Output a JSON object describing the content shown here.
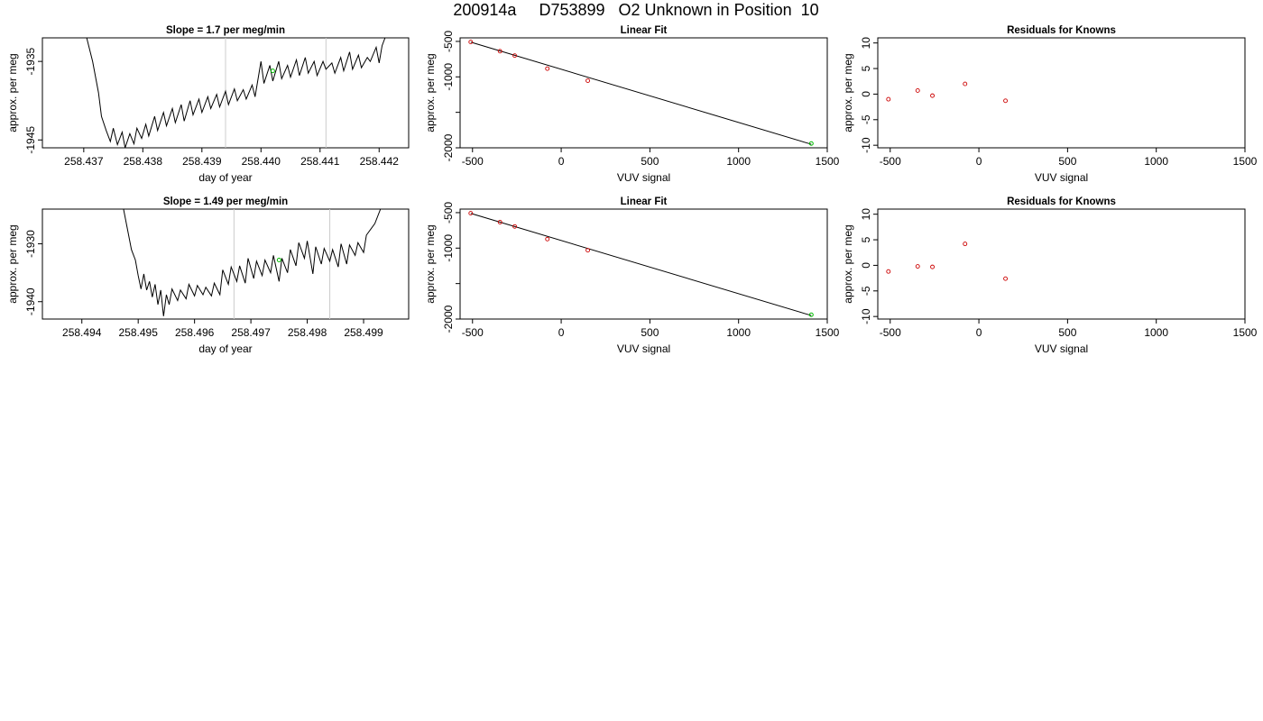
{
  "page": {
    "title": "200914a     D753899   O2 Unknown in Position  10"
  },
  "colors": {
    "trace": "#000000",
    "marker_unknown": "#00bb00",
    "marker_known": "#cc0000",
    "vline": "#cccccc",
    "fit_line": "#000000"
  },
  "chart_data": [
    {
      "type": "line",
      "title": "Slope =  1.7  per meg/min",
      "xlabel": "day of year",
      "ylabel": "approx. per meg",
      "xlim": [
        258.4363,
        258.4425
      ],
      "ylim": [
        -1946.0,
        -1932.0
      ],
      "xticks": [
        258.437,
        258.438,
        258.439,
        258.44,
        258.441,
        258.442
      ],
      "xtick_labels": [
        "258.437",
        "258.438",
        "258.439",
        "258.440",
        "258.441",
        "258.442"
      ],
      "yticks": [
        -1945,
        -1935
      ],
      "ytick_labels": [
        "-1945",
        "-1935"
      ],
      "vlines": [
        258.4394,
        258.4411
      ],
      "unknown_point": {
        "x": 258.4402,
        "y": -1936.2
      },
      "grid": false,
      "series": [
        {
          "style": "line",
          "points": [
            [
              258.43705,
              -1932.0
            ],
            [
              258.43715,
              -1935.0
            ],
            [
              258.43725,
              -1939.0
            ],
            [
              258.4373,
              -1942.0
            ],
            [
              258.43738,
              -1943.8
            ],
            [
              258.43745,
              -1945.2
            ],
            [
              258.4375,
              -1943.5
            ],
            [
              258.43757,
              -1945.6
            ],
            [
              258.43765,
              -1944.0
            ],
            [
              258.4377,
              -1946.0
            ],
            [
              258.43778,
              -1944.2
            ],
            [
              258.43785,
              -1945.5
            ],
            [
              258.4379,
              -1943.5
            ],
            [
              258.43798,
              -1944.8
            ],
            [
              258.43805,
              -1943.0
            ],
            [
              258.4381,
              -1944.5
            ],
            [
              258.4382,
              -1942.0
            ],
            [
              258.43825,
              -1943.8
            ],
            [
              258.43835,
              -1941.5
            ],
            [
              258.4384,
              -1943.2
            ],
            [
              258.4385,
              -1941.0
            ],
            [
              258.43855,
              -1942.8
            ],
            [
              258.43865,
              -1940.5
            ],
            [
              258.4387,
              -1942.6
            ],
            [
              258.4388,
              -1940.0
            ],
            [
              258.43885,
              -1941.8
            ],
            [
              258.43895,
              -1939.8
            ],
            [
              258.439,
              -1941.5
            ],
            [
              258.4391,
              -1939.5
            ],
            [
              258.43915,
              -1941.0
            ],
            [
              258.43925,
              -1939.2
            ],
            [
              258.4393,
              -1940.8
            ],
            [
              258.4394,
              -1938.8
            ],
            [
              258.43945,
              -1940.5
            ],
            [
              258.43955,
              -1938.5
            ],
            [
              258.4396,
              -1940.0
            ],
            [
              258.4397,
              -1938.6
            ],
            [
              258.43975,
              -1939.8
            ],
            [
              258.43985,
              -1938.0
            ],
            [
              258.4399,
              -1939.5
            ],
            [
              258.44,
              -1935.0
            ],
            [
              258.44005,
              -1937.8
            ],
            [
              258.44015,
              -1935.5
            ],
            [
              258.4402,
              -1937.5
            ],
            [
              258.4403,
              -1935.0
            ],
            [
              258.44035,
              -1937.2
            ],
            [
              258.44045,
              -1935.5
            ],
            [
              258.4405,
              -1937.0
            ],
            [
              258.4406,
              -1934.8
            ],
            [
              258.44065,
              -1936.8
            ],
            [
              258.44075,
              -1934.5
            ],
            [
              258.4408,
              -1936.5
            ],
            [
              258.4409,
              -1935.0
            ],
            [
              258.44095,
              -1936.8
            ],
            [
              258.44105,
              -1935.0
            ],
            [
              258.4411,
              -1936.0
            ],
            [
              258.4412,
              -1935.2
            ],
            [
              258.44125,
              -1936.5
            ],
            [
              258.44135,
              -1934.5
            ],
            [
              258.4414,
              -1936.2
            ],
            [
              258.4415,
              -1933.8
            ],
            [
              258.44155,
              -1936.0
            ],
            [
              258.44165,
              -1934.2
            ],
            [
              258.4417,
              -1935.8
            ],
            [
              258.4418,
              -1934.5
            ],
            [
              258.44185,
              -1935.0
            ],
            [
              258.44195,
              -1933.2
            ],
            [
              258.442,
              -1935.2
            ],
            [
              258.44205,
              -1933.0
            ],
            [
              258.4421,
              -1932.0
            ]
          ]
        }
      ]
    },
    {
      "type": "scatter",
      "title": "Linear Fit",
      "xlabel": "VUV signal",
      "ylabel": "approx. per meg",
      "xlim": [
        -570,
        1500
      ],
      "ylim": [
        -2000,
        -450
      ],
      "xticks": [
        -500,
        0,
        500,
        1000,
        1500
      ],
      "xtick_labels": [
        "-500",
        "0",
        "500",
        "1000",
        "1500"
      ],
      "yticks": [
        -2000,
        -1500,
        -1000,
        -500
      ],
      "ytick_labels": [
        "-2000",
        "",
        "-1000",
        "-500"
      ],
      "fit_line": {
        "x": [
          -510,
          1410
        ],
        "y": [
          -510,
          -1950
        ]
      },
      "known_points": {
        "x": [
          -510,
          -345,
          -262,
          -78,
          150
        ],
        "y": [
          -508,
          -638,
          -700,
          -884,
          -1054
        ]
      },
      "unknown_point": {
        "x": 1410,
        "y": -1940
      }
    },
    {
      "type": "scatter",
      "title": "Residuals for Knowns",
      "xlabel": "VUV signal",
      "ylabel": "approx. per meg",
      "xlim": [
        -570,
        1500
      ],
      "ylim": [
        -10.5,
        11
      ],
      "xticks": [
        -500,
        0,
        500,
        1000,
        1500
      ],
      "xtick_labels": [
        "-500",
        "0",
        "500",
        "1000",
        "1500"
      ],
      "yticks": [
        -10,
        -5,
        0,
        5,
        10
      ],
      "ytick_labels": [
        "-10",
        "-5",
        "0",
        "5",
        "10"
      ],
      "known_points": {
        "x": [
          -510,
          -345,
          -262,
          -78,
          150
        ],
        "y": [
          -1.0,
          0.7,
          -0.3,
          2.0,
          -1.3
        ]
      }
    },
    {
      "type": "line",
      "title": "Slope =  1.49  per meg/min",
      "xlabel": "day of year",
      "ylabel": "approx. per meg",
      "xlim": [
        258.4933,
        258.4998
      ],
      "ylim": [
        -1943.0,
        -1924.0
      ],
      "xticks": [
        258.494,
        258.495,
        258.496,
        258.497,
        258.498,
        258.499
      ],
      "xtick_labels": [
        "258.494",
        "258.495",
        "258.496",
        "258.497",
        "258.498",
        "258.499"
      ],
      "yticks": [
        -1940,
        -1930
      ],
      "ytick_labels": [
        "-1940",
        "-1930"
      ],
      "vlines": [
        258.4967,
        258.4984
      ],
      "unknown_point": {
        "x": 258.4975,
        "y": -1932.8
      },
      "grid": false,
      "series": [
        {
          "style": "line",
          "points": [
            [
              258.49474,
              -1924.0
            ],
            [
              258.4948,
              -1927.0
            ],
            [
              258.49488,
              -1931.0
            ],
            [
              258.49495,
              -1932.8
            ],
            [
              258.495,
              -1935.5
            ],
            [
              258.49505,
              -1937.8
            ],
            [
              258.4951,
              -1935.2
            ],
            [
              258.49515,
              -1938.0
            ],
            [
              258.4952,
              -1936.5
            ],
            [
              258.49525,
              -1939.2
            ],
            [
              258.4953,
              -1937.0
            ],
            [
              258.49535,
              -1940.5
            ],
            [
              258.4954,
              -1938.0
            ],
            [
              258.49545,
              -1942.5
            ],
            [
              258.4955,
              -1938.8
            ],
            [
              258.49555,
              -1940.5
            ],
            [
              258.4956,
              -1937.8
            ],
            [
              258.4957,
              -1939.8
            ],
            [
              258.49575,
              -1938.0
            ],
            [
              258.49585,
              -1939.5
            ],
            [
              258.4959,
              -1937.0
            ],
            [
              258.496,
              -1939.0
            ],
            [
              258.49605,
              -1937.2
            ],
            [
              258.49615,
              -1938.8
            ],
            [
              258.4962,
              -1937.5
            ],
            [
              258.4963,
              -1939.0
            ],
            [
              258.49635,
              -1936.8
            ],
            [
              258.49645,
              -1938.8
            ],
            [
              258.4965,
              -1934.5
            ],
            [
              258.4966,
              -1937.0
            ],
            [
              258.49665,
              -1934.0
            ],
            [
              258.49675,
              -1936.5
            ],
            [
              258.4968,
              -1933.8
            ],
            [
              258.4969,
              -1936.8
            ],
            [
              258.49695,
              -1932.5
            ],
            [
              258.49705,
              -1936.0
            ],
            [
              258.4971,
              -1933.0
            ],
            [
              258.4972,
              -1935.5
            ],
            [
              258.49725,
              -1932.8
            ],
            [
              258.49735,
              -1935.0
            ],
            [
              258.4974,
              -1932.0
            ],
            [
              258.4975,
              -1936.5
            ],
            [
              258.49755,
              -1932.5
            ],
            [
              258.49765,
              -1935.0
            ],
            [
              258.4977,
              -1931.0
            ],
            [
              258.4978,
              -1933.8
            ],
            [
              258.49785,
              -1929.8
            ],
            [
              258.49795,
              -1932.5
            ],
            [
              258.498,
              -1929.5
            ],
            [
              258.4981,
              -1935.2
            ],
            [
              258.49815,
              -1930.5
            ],
            [
              258.49825,
              -1933.5
            ],
            [
              258.4983,
              -1930.8
            ],
            [
              258.4984,
              -1933.0
            ],
            [
              258.49845,
              -1931.0
            ],
            [
              258.49855,
              -1934.0
            ],
            [
              258.4986,
              -1930.0
            ],
            [
              258.4987,
              -1933.5
            ],
            [
              258.49875,
              -1930.2
            ],
            [
              258.49885,
              -1932.0
            ],
            [
              258.4989,
              -1929.8
            ],
            [
              258.499,
              -1931.5
            ],
            [
              258.49905,
              -1928.5
            ],
            [
              258.4992,
              -1926.5
            ],
            [
              258.4993,
              -1924.0
            ]
          ]
        }
      ]
    },
    {
      "type": "scatter",
      "title": "Linear Fit",
      "xlabel": "VUV signal",
      "ylabel": "approx. per meg",
      "xlim": [
        -570,
        1500
      ],
      "ylim": [
        -2000,
        -450
      ],
      "xticks": [
        -500,
        0,
        500,
        1000,
        1500
      ],
      "xtick_labels": [
        "-500",
        "0",
        "500",
        "1000",
        "1500"
      ],
      "yticks": [
        -2000,
        -1500,
        -1000,
        -500
      ],
      "ytick_labels": [
        "-2000",
        "",
        "-1000",
        "-500"
      ],
      "fit_line": {
        "x": [
          -510,
          1410
        ],
        "y": [
          -510,
          -1950
        ]
      },
      "known_points": {
        "x": [
          -510,
          -345,
          -262,
          -78,
          150
        ],
        "y": [
          -508,
          -634,
          -695,
          -873,
          -1030
        ]
      },
      "unknown_point": {
        "x": 1410,
        "y": -1940
      }
    },
    {
      "type": "scatter",
      "title": "Residuals for Knowns",
      "xlabel": "VUV signal",
      "ylabel": "approx. per meg",
      "xlim": [
        -570,
        1500
      ],
      "ylim": [
        -10.5,
        11
      ],
      "xticks": [
        -500,
        0,
        500,
        1000,
        1500
      ],
      "xtick_labels": [
        "-500",
        "0",
        "500",
        "1000",
        "1500"
      ],
      "yticks": [
        -10,
        -5,
        0,
        5,
        10
      ],
      "ytick_labels": [
        "-10",
        "-5",
        "0",
        "5",
        "10"
      ],
      "known_points": {
        "x": [
          -510,
          -345,
          -262,
          -78,
          150
        ],
        "y": [
          -1.2,
          -0.2,
          -0.3,
          4.2,
          -2.6
        ]
      }
    }
  ]
}
